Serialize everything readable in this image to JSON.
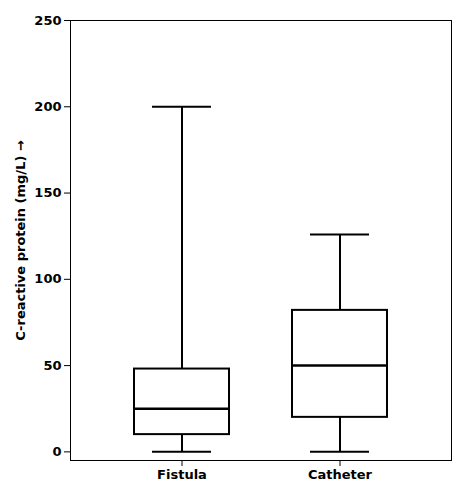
{
  "chart_data": {
    "type": "box",
    "categories": [
      "Fistula",
      "Catheter"
    ],
    "whisker_low": [
      0,
      0
    ],
    "q1": [
      10,
      20
    ],
    "median": [
      25,
      50
    ],
    "q3": [
      48,
      82
    ],
    "whisker_high": [
      200,
      126
    ],
    "ylabel": "C-reactive protein (mg/L)",
    "ylim": [
      -5,
      250
    ],
    "yticks": [
      0,
      50,
      100,
      150,
      200,
      250
    ],
    "grid": false
  }
}
